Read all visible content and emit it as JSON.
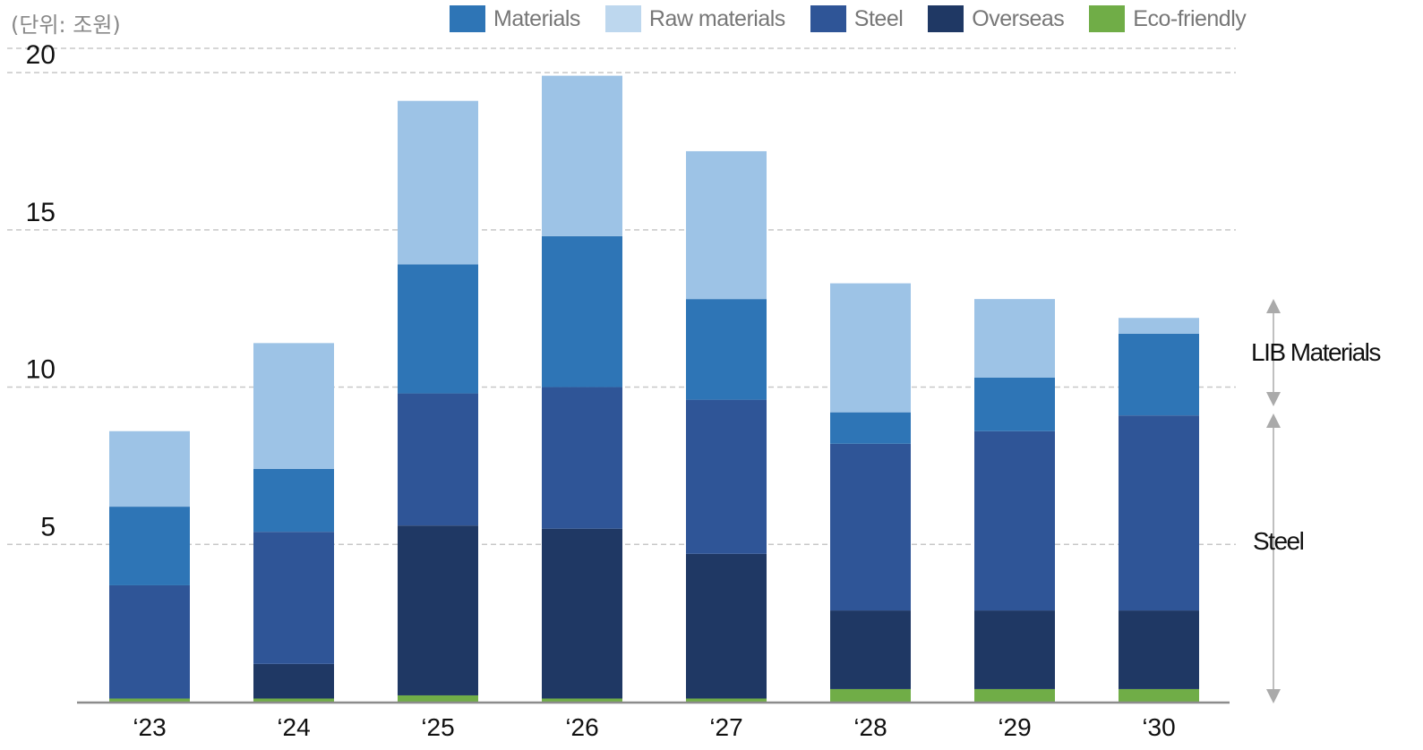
{
  "unit_label": "(단위: 조원)",
  "legend": [
    {
      "name": "Materials",
      "color": "#2e75b6"
    },
    {
      "name": "Raw materials",
      "color": "#bdd7ee"
    },
    {
      "name": "Steel",
      "color": "#2f5597"
    },
    {
      "name": "Overseas",
      "color": "#1f3864"
    },
    {
      "name": "Eco-friendly",
      "color": "#70ad47"
    }
  ],
  "side_labels": {
    "lib_materials": "LIB Materials",
    "steel": "Steel"
  },
  "chart_data": {
    "type": "bar",
    "stacked": true,
    "categories": [
      "‘23",
      "‘24",
      "‘25",
      "‘26",
      "‘27",
      "‘28",
      "‘29",
      "‘30"
    ],
    "series": [
      {
        "name": "Eco-friendly",
        "color": "#70ad47",
        "values": [
          0.1,
          0.1,
          0.2,
          0.1,
          0.1,
          0.4,
          0.4,
          0.4
        ]
      },
      {
        "name": "Overseas",
        "color": "#1f3864",
        "values": [
          0,
          1.1,
          5.4,
          5.4,
          4.6,
          2.5,
          2.5,
          2.5
        ]
      },
      {
        "name": "Steel",
        "color": "#2f5597",
        "values": [
          3.6,
          4.2,
          4.2,
          4.5,
          4.9,
          5.3,
          5.7,
          6.2
        ]
      },
      {
        "name": "Materials",
        "color": "#2e75b6",
        "values": [
          2.5,
          2.0,
          4.1,
          4.8,
          3.2,
          1.0,
          1.7,
          2.6
        ]
      },
      {
        "name": "Raw materials",
        "color": "#9dc3e6",
        "values": [
          2.4,
          4.0,
          5.2,
          5.1,
          4.7,
          4.1,
          2.5,
          0.5
        ]
      }
    ],
    "yticks": [
      5,
      10,
      15,
      20
    ],
    "ylim": [
      0,
      20.6
    ],
    "grid": true,
    "legend_position": "top"
  }
}
